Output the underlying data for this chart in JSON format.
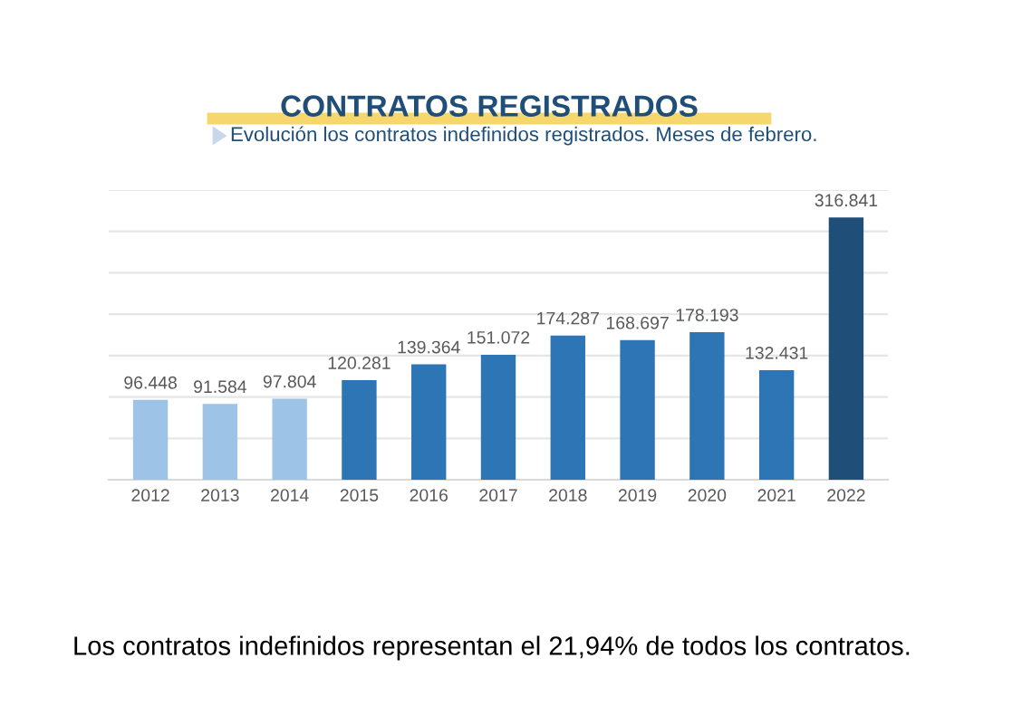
{
  "chart_data": {
    "type": "bar",
    "title": "CONTRATOS REGISTRADOS",
    "subtitle": "Evolución los contratos indefinidos registrados. Meses de febrero.",
    "categories": [
      "2012",
      "2013",
      "2014",
      "2015",
      "2016",
      "2017",
      "2018",
      "2019",
      "2020",
      "2021",
      "2022"
    ],
    "values": [
      96448,
      91584,
      97804,
      120281,
      139364,
      151072,
      174287,
      168697,
      178193,
      132431,
      316841
    ],
    "value_labels": [
      "96.448",
      "91.584",
      "97.804",
      "120.281",
      "139.364",
      "151.072",
      "174.287",
      "168.697",
      "178.193",
      "132.431",
      "316.841"
    ],
    "colors": [
      "#9dc3e6",
      "#9dc3e6",
      "#9dc3e6",
      "#2e75b6",
      "#2e75b6",
      "#2e75b6",
      "#2e75b6",
      "#2e75b6",
      "#2e75b6",
      "#2e75b6",
      "#1f4e79"
    ],
    "ylim": [
      0,
      350000
    ],
    "yticks": [
      {
        "value": 0,
        "label": null
      },
      {
        "value": 50000,
        "label": null
      },
      {
        "value": 100000,
        "label": null
      },
      {
        "value": 150000,
        "label": null
      },
      {
        "value": 200000,
        "label": null
      },
      {
        "value": 250000,
        "label": null
      },
      {
        "value": 300000,
        "label": null
      },
      {
        "value": 350000,
        "label": null
      }
    ],
    "grid": "y",
    "tick_labels": "x",
    "annotations": [
      "Los contratos indefinidos representan el 21,94% de todos los contratos."
    ]
  }
}
